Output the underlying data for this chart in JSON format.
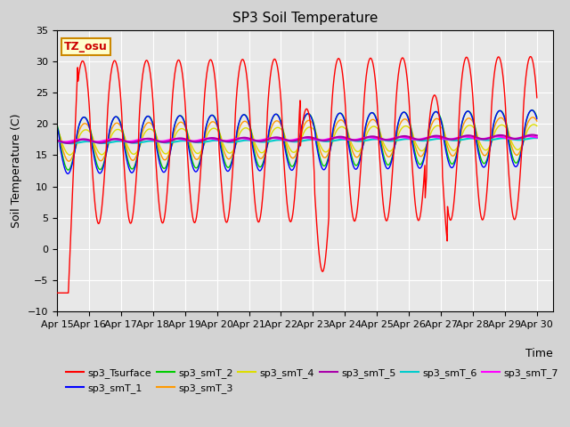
{
  "title": "SP3 Soil Temperature",
  "ylabel": "Soil Temperature (C)",
  "xlabel": "Time",
  "tz_label": "TZ_osu",
  "ylim": [
    -10,
    35
  ],
  "background_color": "#d3d3d3",
  "plot_bg_color": "#e8e8e8",
  "x_tick_labels": [
    "Apr 15",
    "Apr 16",
    "Apr 17",
    "Apr 18",
    "Apr 19",
    "Apr 20",
    "Apr 21",
    "Apr 22",
    "Apr 23",
    "Apr 24",
    "Apr 25",
    "Apr 26",
    "Apr 27",
    "Apr 28",
    "Apr 29",
    "Apr 30"
  ],
  "series_colors": {
    "sp3_Tsurface": "#ff0000",
    "sp3_smT_1": "#0000ff",
    "sp3_smT_2": "#00cc00",
    "sp3_smT_3": "#ff9900",
    "sp3_smT_4": "#dddd00",
    "sp3_smT_5": "#aa00aa",
    "sp3_smT_6": "#00cccc",
    "sp3_smT_7": "#ff00ff"
  },
  "num_days": 15.5
}
